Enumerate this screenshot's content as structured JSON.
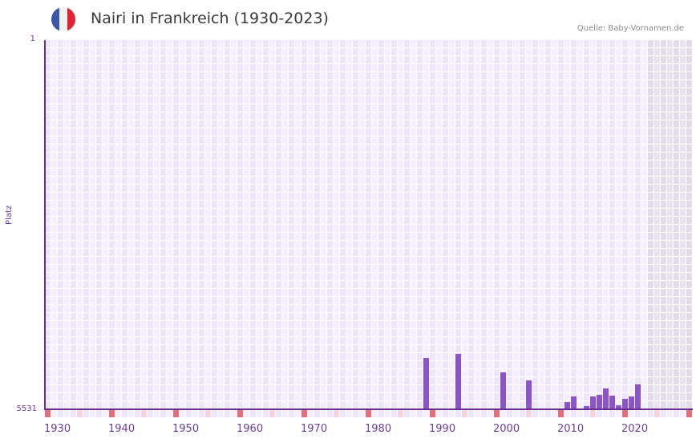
{
  "header": {
    "title": "Nairi in Frankreich (1930-2023)",
    "source": "Quelle: Baby-Vornamen.de",
    "flag": {
      "name": "france-flag-icon",
      "colors": [
        "#3a56a8",
        "#f2f2f2",
        "#e3232f"
      ]
    }
  },
  "axis": {
    "y_title": "Platz",
    "y_top_label": "1",
    "y_bottom_label": "5531",
    "x_labels": [
      "1930",
      "1940",
      "1950",
      "1960",
      "1970",
      "1980",
      "1990",
      "2000",
      "2010",
      "2020"
    ]
  },
  "colors": {
    "bar": "#8b54c8",
    "axis": "#6a2e8e",
    "col_a": "#ece7f8",
    "col_b": "#f3f0fc",
    "col_future_a": "#e0dcec",
    "col_future_b": "#e7e4ef",
    "decade_mark": "#e2707a",
    "half_decade_mark": "#f5d6df",
    "plain_mark_a": "#ece7f8",
    "plain_mark_b": "#f3f0fc"
  },
  "chart_data": {
    "type": "bar",
    "title": "Nairi in Frankreich (1930-2023)",
    "xlabel": "",
    "ylabel": "Platz",
    "y_inverted": true,
    "ylim": [
      5531,
      1
    ],
    "x_range": [
      1930,
      2030
    ],
    "future_shaded_from": 2024,
    "grid": true,
    "x": [
      1989,
      1994,
      2001,
      2005,
      2011,
      2012,
      2014,
      2015,
      2016,
      2017,
      2018,
      2019,
      2020,
      2021,
      2022
    ],
    "values": [
      4762,
      4702,
      4978,
      5098,
      5423,
      5339,
      5483,
      5339,
      5315,
      5218,
      5327,
      5471,
      5375,
      5339,
      5158
    ],
    "series": [
      {
        "name": "Platz",
        "values": [
          4762,
          4702,
          4978,
          5098,
          5423,
          5339,
          5483,
          5339,
          5315,
          5218,
          5327,
          5471,
          5375,
          5339,
          5158
        ]
      }
    ],
    "source": "Quelle: Baby-Vornamen.de"
  }
}
